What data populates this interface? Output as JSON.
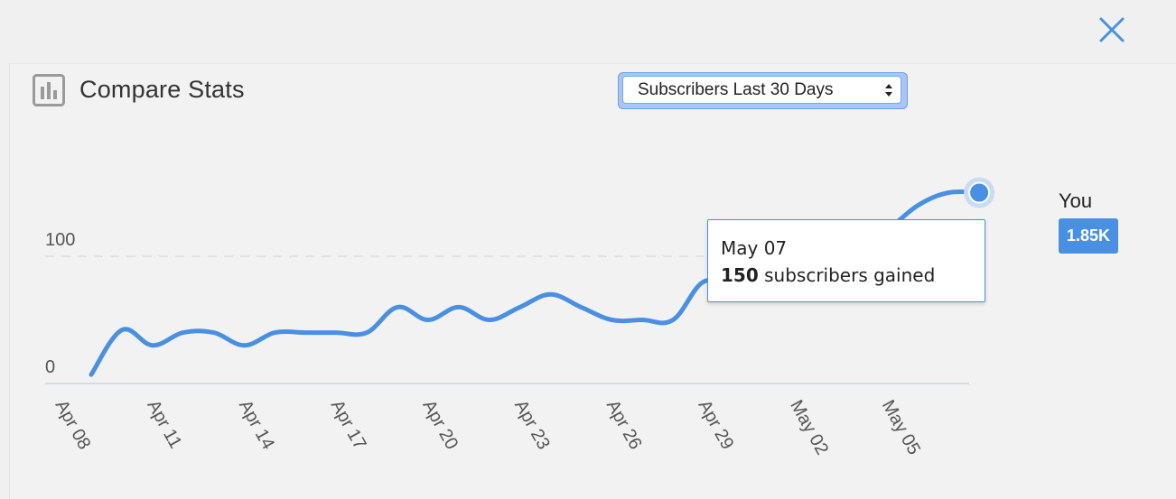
{
  "header": {
    "title": "Compare Stats",
    "icon": "bar-chart-icon",
    "close_icon": "close-icon"
  },
  "select": {
    "selected": "Subscribers Last 30 Days"
  },
  "legend": {
    "name": "You",
    "badge": "1.85K",
    "color": "#4a90e2"
  },
  "tooltip": {
    "date": "May 07",
    "value": "150",
    "suffix": " subscribers gained"
  },
  "chart_data": {
    "type": "line",
    "title": "",
    "xlabel": "",
    "ylabel": "",
    "y_ticks": [
      "0",
      "100"
    ],
    "ylim": [
      0,
      150
    ],
    "grid": "dashed line at 100",
    "x_tick_labels": [
      "Apr 08",
      "Apr 11",
      "Apr 14",
      "Apr 17",
      "Apr 20",
      "Apr 23",
      "Apr 26",
      "Apr 29",
      "May 02",
      "May 05"
    ],
    "series": [
      {
        "name": "You",
        "color": "#4a90e2",
        "x": [
          "Apr 08",
          "Apr 09",
          "Apr 10",
          "Apr 11",
          "Apr 12",
          "Apr 13",
          "Apr 14",
          "Apr 15",
          "Apr 16",
          "Apr 17",
          "Apr 18",
          "Apr 19",
          "Apr 20",
          "Apr 21",
          "Apr 22",
          "Apr 23",
          "Apr 24",
          "Apr 25",
          "Apr 26",
          "Apr 27",
          "Apr 28",
          "Apr 29",
          "Apr 30",
          "May 01",
          "May 02",
          "May 03",
          "May 04",
          "May 05",
          "May 06",
          "May 07"
        ],
        "values": [
          7,
          42,
          30,
          40,
          40,
          30,
          40,
          40,
          40,
          40,
          60,
          50,
          60,
          50,
          60,
          70,
          60,
          50,
          50,
          50,
          80,
          75,
          80,
          90,
          100,
          100,
          120,
          140,
          150,
          150
        ]
      }
    ]
  }
}
